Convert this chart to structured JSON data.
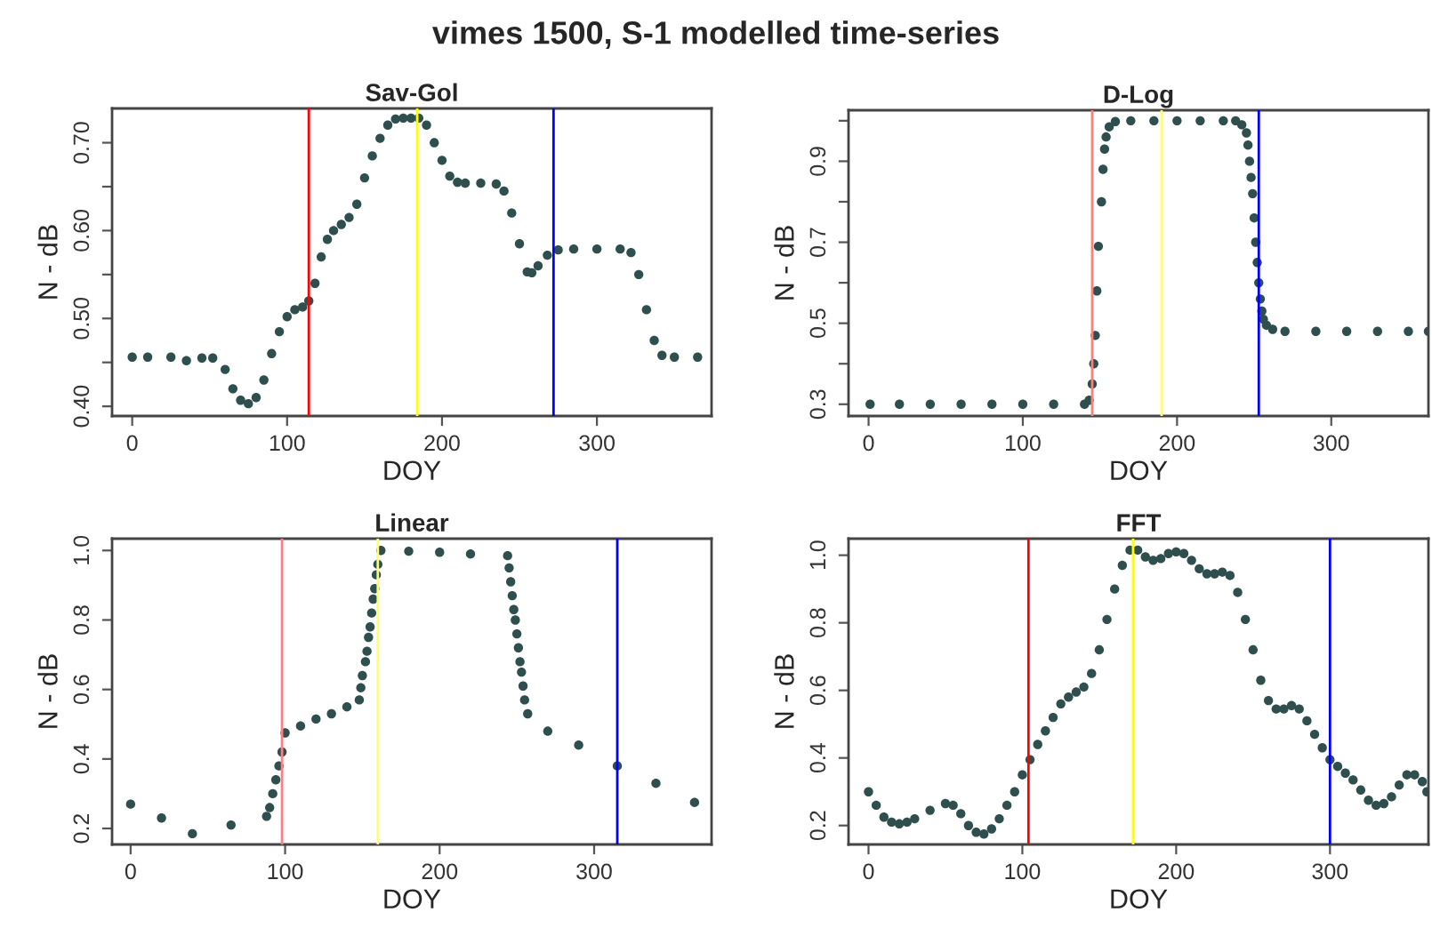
{
  "chart_data": [
    {
      "type": "scatter",
      "title": "Sav-Gol",
      "xlabel": "DOY",
      "ylabel": "N - dB",
      "annotations": [
        "vimes 1500, S-1 modelled time-series"
      ],
      "marker": "circle",
      "grid": false,
      "xlim": [
        -13,
        374
      ],
      "xticks": [
        0,
        100,
        200,
        300
      ],
      "ylim": [
        0.389,
        0.739
      ],
      "yticks": [
        {
          "value": 0.4,
          "label": "0.40"
        },
        {
          "value": 0.45,
          "label": null
        },
        {
          "value": 0.5,
          "label": "0.50"
        },
        {
          "value": 0.55,
          "label": null
        },
        {
          "value": 0.6,
          "label": "0.60"
        },
        {
          "value": 0.65,
          "label": null
        },
        {
          "value": 0.7,
          "label": "0.70"
        }
      ],
      "series": [
        {
          "color": "#2f4f4f",
          "x": [
            0,
            10,
            25,
            35,
            45,
            52,
            60,
            65,
            70,
            75,
            80,
            85,
            90,
            95,
            100,
            105,
            110,
            114,
            118,
            122,
            126,
            130,
            135,
            140,
            145,
            150,
            155,
            160,
            165,
            170,
            175,
            180,
            185,
            190,
            195,
            200,
            205,
            210,
            215,
            225,
            235,
            240,
            245,
            250,
            255,
            258,
            262,
            268,
            275,
            285,
            300,
            315,
            322,
            327,
            332,
            337,
            342,
            350,
            365
          ],
          "values": [
            0.456,
            0.456,
            0.456,
            0.452,
            0.455,
            0.455,
            0.442,
            0.42,
            0.407,
            0.403,
            0.41,
            0.43,
            0.46,
            0.485,
            0.502,
            0.51,
            0.513,
            0.52,
            0.54,
            0.57,
            0.59,
            0.6,
            0.607,
            0.615,
            0.63,
            0.66,
            0.685,
            0.705,
            0.72,
            0.727,
            0.728,
            0.728,
            0.728,
            0.72,
            0.7,
            0.68,
            0.662,
            0.655,
            0.654,
            0.654,
            0.653,
            0.645,
            0.62,
            0.585,
            0.553,
            0.552,
            0.56,
            0.572,
            0.578,
            0.579,
            0.579,
            0.579,
            0.575,
            0.55,
            0.51,
            0.475,
            0.458,
            0.456,
            0.456
          ]
        }
      ],
      "ref_lines": [
        {
          "axis": "x",
          "value": 114,
          "color": "#ff0000"
        },
        {
          "axis": "x",
          "value": 184,
          "color": "#ffff00"
        },
        {
          "axis": "x",
          "value": 272,
          "color": "#0000ff"
        }
      ]
    },
    {
      "type": "scatter",
      "title": "D-Log",
      "xlabel": "DOY",
      "ylabel": "N - dB",
      "marker": "circle",
      "grid": false,
      "xlim": [
        -13,
        363
      ],
      "xticks": [
        0,
        100,
        200,
        300
      ],
      "ylim": [
        0.271,
        1.026
      ],
      "yticks": [
        0.3,
        {
          "value": 0.4,
          "label": null
        },
        0.5,
        {
          "value": 0.6,
          "label": null
        },
        0.7,
        {
          "value": 0.8,
          "label": null
        },
        0.9,
        {
          "value": 1.0,
          "label": null
        }
      ],
      "series": [
        {
          "color": "#2f4f4f",
          "x": [
            1,
            20,
            40,
            60,
            80,
            100,
            120,
            140,
            143,
            145,
            146,
            147,
            148,
            149,
            151,
            152,
            153,
            154,
            156,
            160,
            170,
            185,
            200,
            215,
            230,
            238,
            242,
            245,
            246,
            247,
            248,
            249,
            250,
            251,
            252,
            253,
            254,
            255,
            256,
            258,
            262,
            270,
            290,
            310,
            330,
            350,
            363
          ],
          "values": [
            0.3,
            0.3,
            0.3,
            0.3,
            0.3,
            0.3,
            0.3,
            0.3,
            0.31,
            0.35,
            0.4,
            0.47,
            0.58,
            0.69,
            0.8,
            0.88,
            0.93,
            0.96,
            0.985,
            0.998,
            1.0,
            1.0,
            1.0,
            1.0,
            1.0,
            1.0,
            0.99,
            0.97,
            0.94,
            0.9,
            0.86,
            0.82,
            0.76,
            0.7,
            0.65,
            0.6,
            0.56,
            0.53,
            0.51,
            0.495,
            0.485,
            0.48,
            0.48,
            0.48,
            0.48,
            0.48,
            0.48
          ]
        }
      ],
      "ref_lines": [
        {
          "axis": "x",
          "value": 145,
          "color": "#ff7f7f"
        },
        {
          "axis": "x",
          "value": 190,
          "color": "#ffff66"
        },
        {
          "axis": "x",
          "value": 253,
          "color": "#0000ff"
        }
      ]
    },
    {
      "type": "scatter",
      "title": "Linear",
      "xlabel": "DOY",
      "ylabel": "N - dB",
      "marker": "circle",
      "grid": false,
      "xlim": [
        -12,
        376
      ],
      "xticks": [
        0,
        100,
        200,
        300
      ],
      "ylim": [
        0.154,
        1.034
      ],
      "yticks": [
        0.2,
        0.4,
        0.6,
        0.8,
        {
          "value": 1,
          "label": "1.0"
        }
      ],
      "series": [
        {
          "color": "#2f4f4f",
          "x": [
            0,
            20,
            40,
            65,
            88,
            90,
            92,
            94,
            96,
            98,
            100,
            110,
            120,
            130,
            140,
            148,
            149,
            150,
            152,
            153,
            154,
            155,
            156,
            157,
            158,
            159,
            160,
            162,
            180,
            200,
            220,
            244,
            245,
            246,
            247,
            248,
            249,
            250,
            251,
            252,
            253,
            254,
            255,
            257,
            270,
            290,
            315,
            340,
            365
          ],
          "values": [
            0.27,
            0.23,
            0.185,
            0.21,
            0.235,
            0.26,
            0.3,
            0.34,
            0.38,
            0.42,
            0.475,
            0.495,
            0.515,
            0.53,
            0.55,
            0.57,
            0.605,
            0.64,
            0.68,
            0.71,
            0.75,
            0.78,
            0.82,
            0.86,
            0.89,
            0.93,
            0.96,
            1.0,
            0.998,
            0.995,
            0.99,
            0.985,
            0.95,
            0.91,
            0.87,
            0.83,
            0.8,
            0.76,
            0.72,
            0.68,
            0.65,
            0.61,
            0.57,
            0.53,
            0.48,
            0.44,
            0.38,
            0.33,
            0.275
          ]
        }
      ],
      "ref_lines": [
        {
          "axis": "x",
          "value": 98,
          "color": "#ff7f7f"
        },
        {
          "axis": "x",
          "value": 160,
          "color": "#ffff66"
        },
        {
          "axis": "x",
          "value": 315,
          "color": "#0000ff"
        }
      ]
    },
    {
      "type": "scatter",
      "title": "FFT",
      "xlabel": "DOY",
      "ylabel": "N - dB",
      "marker": "circle",
      "grid": false,
      "xlim": [
        -13,
        364
      ],
      "xticks": [
        0,
        100,
        200,
        300
      ],
      "ylim": [
        0.144,
        1.049
      ],
      "yticks": [
        0.2,
        0.4,
        0.6,
        0.8,
        {
          "value": 1,
          "label": "1.0"
        }
      ],
      "series": [
        {
          "color": "#2f4f4f",
          "x": [
            0,
            5,
            10,
            15,
            20,
            25,
            30,
            40,
            50,
            55,
            60,
            65,
            70,
            75,
            80,
            85,
            90,
            95,
            100,
            105,
            110,
            115,
            120,
            125,
            130,
            135,
            140,
            145,
            150,
            155,
            160,
            165,
            170,
            175,
            180,
            185,
            190,
            195,
            200,
            205,
            210,
            215,
            220,
            225,
            230,
            235,
            240,
            245,
            250,
            255,
            260,
            265,
            270,
            275,
            280,
            285,
            290,
            295,
            300,
            305,
            310,
            315,
            320,
            325,
            330,
            335,
            340,
            345,
            350,
            355,
            360,
            363
          ],
          "values": [
            0.3,
            0.26,
            0.225,
            0.21,
            0.205,
            0.21,
            0.22,
            0.245,
            0.265,
            0.26,
            0.235,
            0.2,
            0.18,
            0.175,
            0.19,
            0.22,
            0.26,
            0.3,
            0.35,
            0.395,
            0.44,
            0.48,
            0.52,
            0.56,
            0.58,
            0.595,
            0.61,
            0.65,
            0.72,
            0.81,
            0.9,
            0.97,
            1.015,
            1.015,
            0.995,
            0.985,
            0.99,
            1.005,
            1.01,
            1.005,
            0.985,
            0.96,
            0.945,
            0.945,
            0.95,
            0.94,
            0.89,
            0.81,
            0.72,
            0.63,
            0.57,
            0.545,
            0.545,
            0.555,
            0.545,
            0.51,
            0.47,
            0.43,
            0.395,
            0.375,
            0.355,
            0.335,
            0.305,
            0.275,
            0.26,
            0.265,
            0.285,
            0.32,
            0.35,
            0.35,
            0.33,
            0.3
          ]
        }
      ],
      "ref_lines": [
        {
          "axis": "x",
          "value": 104,
          "color": "#ff0000"
        },
        {
          "axis": "x",
          "value": 172,
          "color": "#ffff00"
        },
        {
          "axis": "x",
          "value": 300,
          "color": "#0000ff"
        }
      ]
    }
  ]
}
